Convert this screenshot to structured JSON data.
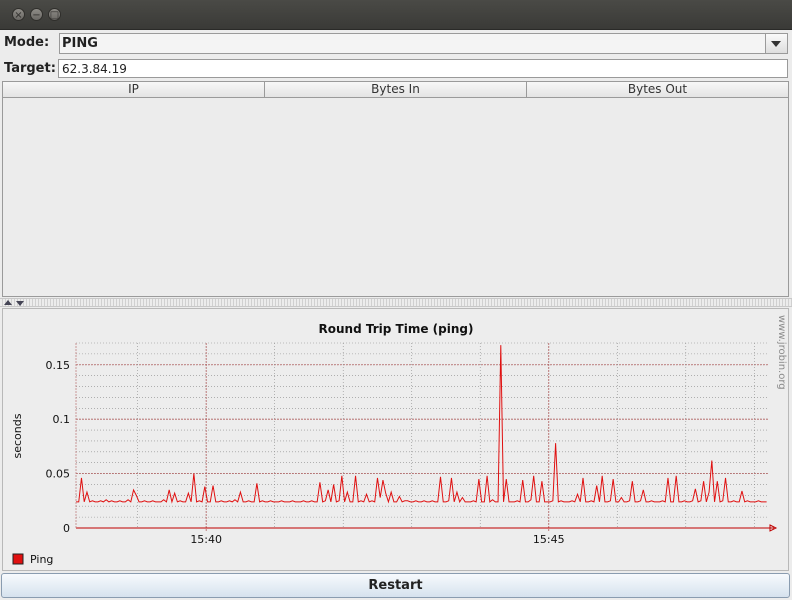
{
  "window": {
    "close_glyph": "×",
    "minimize_glyph": "−",
    "maximize_glyph": "□"
  },
  "mode": {
    "label": "Mode:",
    "value": "PING"
  },
  "target": {
    "label": "Target:",
    "value": "62.3.84.19"
  },
  "table": {
    "columns": [
      "IP",
      "Bytes In",
      "Bytes Out"
    ]
  },
  "chart_data": {
    "type": "line",
    "title": "Round Trip Time (ping)",
    "ylabel": "seconds",
    "xlabel": "",
    "watermark": "www.jrobin.org",
    "ylim": [
      0,
      0.17
    ],
    "y_ticks": [
      0,
      0.05,
      0.1,
      0.15
    ],
    "y_tick_labels": [
      "0",
      "0.05",
      "0.1",
      "0.15"
    ],
    "x_range_minutes": [
      38.1,
      48.2
    ],
    "x_major_ticks": [
      40,
      45
    ],
    "x_tick_labels": [
      "15:40",
      "15:45"
    ],
    "grid": true,
    "legend_position": "bottom-left",
    "colors": {
      "series": "#e01010",
      "grid": "#7a7a7a",
      "axis": "#c00000"
    },
    "series": [
      {
        "name": "Ping",
        "x_minutes": [
          38.1,
          38.14,
          38.18,
          38.22,
          38.26,
          38.3,
          38.34,
          38.38,
          38.42,
          38.46,
          38.5,
          38.54,
          38.58,
          38.62,
          38.66,
          38.7,
          38.74,
          38.78,
          38.82,
          38.86,
          38.9,
          38.94,
          38.98,
          39.02,
          39.06,
          39.1,
          39.14,
          39.18,
          39.22,
          39.26,
          39.3,
          39.34,
          39.38,
          39.42,
          39.46,
          39.5,
          39.54,
          39.58,
          39.62,
          39.66,
          39.7,
          39.74,
          39.78,
          39.82,
          39.86,
          39.9,
          39.94,
          39.98,
          40.02,
          40.06,
          40.1,
          40.14,
          40.18,
          40.22,
          40.26,
          40.3,
          40.34,
          40.38,
          40.42,
          40.46,
          40.5,
          40.54,
          40.58,
          40.62,
          40.66,
          40.7,
          40.74,
          40.78,
          40.82,
          40.86,
          40.9,
          40.94,
          40.98,
          41.02,
          41.06,
          41.1,
          41.14,
          41.18,
          41.22,
          41.26,
          41.3,
          41.34,
          41.38,
          41.42,
          41.46,
          41.5,
          41.54,
          41.58,
          41.62,
          41.66,
          41.7,
          41.74,
          41.78,
          41.82,
          41.86,
          41.9,
          41.94,
          41.98,
          42.02,
          42.06,
          42.1,
          42.14,
          42.18,
          42.22,
          42.26,
          42.3,
          42.34,
          42.38,
          42.42,
          42.46,
          42.5,
          42.54,
          42.58,
          42.62,
          42.66,
          42.7,
          42.74,
          42.78,
          42.82,
          42.86,
          42.9,
          42.94,
          42.98,
          43.02,
          43.06,
          43.1,
          43.14,
          43.18,
          43.22,
          43.26,
          43.3,
          43.34,
          43.38,
          43.42,
          43.46,
          43.5,
          43.54,
          43.58,
          43.62,
          43.66,
          43.7,
          43.74,
          43.78,
          43.82,
          43.86,
          43.9,
          43.94,
          43.98,
          44.02,
          44.06,
          44.1,
          44.14,
          44.18,
          44.22,
          44.26,
          44.3,
          44.34,
          44.38,
          44.42,
          44.46,
          44.5,
          44.54,
          44.58,
          44.62,
          44.66,
          44.7,
          44.74,
          44.78,
          44.82,
          44.86,
          44.9,
          44.94,
          44.98,
          45.02,
          45.06,
          45.1,
          45.14,
          45.18,
          45.22,
          45.26,
          45.3,
          45.34,
          45.38,
          45.42,
          45.46,
          45.5,
          45.54,
          45.58,
          45.62,
          45.66,
          45.7,
          45.74,
          45.78,
          45.82,
          45.86,
          45.9,
          45.94,
          45.98,
          46.02,
          46.06,
          46.1,
          46.14,
          46.18,
          46.22,
          46.26,
          46.3,
          46.34,
          46.38,
          46.42,
          46.46,
          46.5,
          46.54,
          46.58,
          46.62,
          46.66,
          46.7,
          46.74,
          46.78,
          46.82,
          46.86,
          46.9,
          46.94,
          46.98,
          47.02,
          47.06,
          47.1,
          47.14,
          47.18,
          47.22,
          47.26,
          47.3,
          47.34,
          47.38,
          47.42,
          47.46,
          47.5,
          47.54,
          47.58,
          47.62,
          47.66,
          47.7,
          47.74,
          47.78,
          47.82,
          47.86,
          47.9,
          47.94,
          47.98,
          48.02,
          48.06,
          48.1,
          48.14,
          48.18
        ],
        "values": [
          0.024,
          0.024,
          0.046,
          0.024,
          0.033,
          0.024,
          0.025,
          0.024,
          0.024,
          0.025,
          0.024,
          0.026,
          0.024,
          0.025,
          0.024,
          0.024,
          0.025,
          0.024,
          0.024,
          0.026,
          0.024,
          0.035,
          0.03,
          0.024,
          0.024,
          0.025,
          0.024,
          0.024,
          0.025,
          0.024,
          0.024,
          0.024,
          0.026,
          0.024,
          0.035,
          0.024,
          0.032,
          0.024,
          0.025,
          0.024,
          0.024,
          0.032,
          0.024,
          0.05,
          0.024,
          0.025,
          0.024,
          0.038,
          0.024,
          0.024,
          0.039,
          0.024,
          0.024,
          0.025,
          0.024,
          0.024,
          0.025,
          0.024,
          0.026,
          0.024,
          0.033,
          0.024,
          0.024,
          0.025,
          0.024,
          0.024,
          0.041,
          0.024,
          0.025,
          0.024,
          0.024,
          0.025,
          0.024,
          0.024,
          0.024,
          0.025,
          0.024,
          0.024,
          0.024,
          0.025,
          0.024,
          0.024,
          0.024,
          0.025,
          0.024,
          0.024,
          0.025,
          0.024,
          0.024,
          0.042,
          0.024,
          0.025,
          0.035,
          0.024,
          0.04,
          0.024,
          0.025,
          0.048,
          0.024,
          0.033,
          0.024,
          0.024,
          0.048,
          0.024,
          0.025,
          0.024,
          0.031,
          0.024,
          0.025,
          0.024,
          0.046,
          0.028,
          0.044,
          0.032,
          0.024,
          0.033,
          0.024,
          0.024,
          0.029,
          0.024,
          0.025,
          0.025,
          0.024,
          0.024,
          0.025,
          0.024,
          0.024,
          0.025,
          0.024,
          0.024,
          0.025,
          0.024,
          0.024,
          0.047,
          0.024,
          0.024,
          0.025,
          0.046,
          0.024,
          0.033,
          0.024,
          0.028,
          0.024,
          0.024,
          0.024,
          0.025,
          0.024,
          0.045,
          0.024,
          0.024,
          0.048,
          0.024,
          0.026,
          0.024,
          0.024,
          0.168,
          0.024,
          0.045,
          0.024,
          0.024,
          0.024,
          0.025,
          0.024,
          0.044,
          0.024,
          0.024,
          0.026,
          0.048,
          0.024,
          0.024,
          0.043,
          0.024,
          0.024,
          0.024,
          0.025,
          0.078,
          0.024,
          0.025,
          0.024,
          0.024,
          0.024,
          0.025,
          0.024,
          0.031,
          0.024,
          0.046,
          0.024,
          0.024,
          0.025,
          0.024,
          0.039,
          0.024,
          0.048,
          0.024,
          0.024,
          0.025,
          0.045,
          0.024,
          0.024,
          0.028,
          0.024,
          0.024,
          0.025,
          0.043,
          0.024,
          0.024,
          0.025,
          0.035,
          0.024,
          0.024,
          0.025,
          0.024,
          0.024,
          0.024,
          0.025,
          0.024,
          0.046,
          0.024,
          0.024,
          0.048,
          0.024,
          0.024,
          0.025,
          0.024,
          0.024,
          0.025,
          0.036,
          0.024,
          0.025,
          0.043,
          0.024,
          0.033,
          0.062,
          0.024,
          0.043,
          0.024,
          0.025,
          0.046,
          0.024,
          0.024,
          0.025,
          0.024,
          0.024,
          0.034,
          0.024,
          0.025,
          0.024,
          0.024,
          0.024,
          0.025,
          0.024,
          0.024,
          0.024
        ]
      }
    ]
  },
  "restart": {
    "label": "Restart"
  }
}
